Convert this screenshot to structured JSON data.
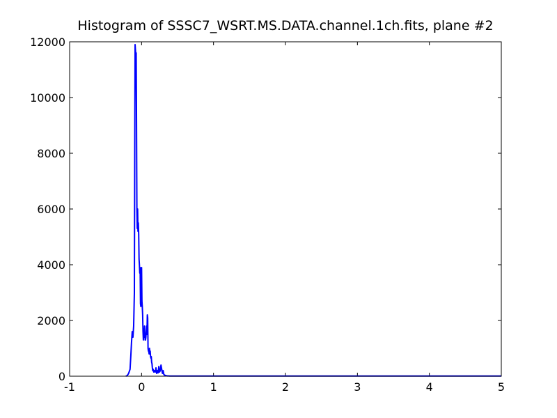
{
  "chart_data": {
    "type": "line",
    "title": "Histogram of SSSC7_WSRT.MS.DATA.channel.1ch.fits, plane #2",
    "xlabel": "",
    "ylabel": "",
    "xlim": [
      -1,
      5
    ],
    "ylim": [
      0,
      12000
    ],
    "xticks": [
      -1,
      0,
      1,
      2,
      3,
      4,
      5
    ],
    "yticks": [
      0,
      2000,
      4000,
      6000,
      8000,
      10000,
      12000
    ],
    "grid": false,
    "series": [
      {
        "color": "#0000ff",
        "x": [
          -0.22,
          -0.2,
          -0.18,
          -0.16,
          -0.15,
          -0.14,
          -0.13,
          -0.12,
          -0.11,
          -0.1,
          -0.095,
          -0.09,
          -0.085,
          -0.08,
          -0.075,
          -0.07,
          -0.065,
          -0.06,
          -0.055,
          -0.05,
          -0.045,
          -0.04,
          -0.035,
          -0.03,
          -0.025,
          -0.02,
          -0.015,
          -0.01,
          -0.005,
          0.0,
          0.005,
          0.01,
          0.015,
          0.02,
          0.025,
          0.03,
          0.035,
          0.04,
          0.045,
          0.05,
          0.055,
          0.06,
          0.065,
          0.07,
          0.075,
          0.08,
          0.085,
          0.09,
          0.095,
          0.1,
          0.105,
          0.11,
          0.115,
          0.12,
          0.125,
          0.13,
          0.135,
          0.14,
          0.145,
          0.15,
          0.155,
          0.16,
          0.17,
          0.18,
          0.19,
          0.2,
          0.21,
          0.22,
          0.23,
          0.24,
          0.25,
          0.26,
          0.27,
          0.28,
          0.29,
          0.3,
          0.31,
          0.32,
          0.33,
          0.34,
          0.35,
          0.36,
          0.37,
          0.38,
          0.39,
          0.4,
          0.41,
          0.42,
          0.44,
          0.5,
          0.6,
          0.8,
          1.0,
          1.2,
          1.5,
          2.0,
          3.0,
          4.0,
          5.0
        ],
        "y": [
          0,
          20,
          100,
          250,
          700,
          1200,
          1600,
          1400,
          1800,
          3000,
          8000,
          11900,
          11700,
          11500,
          11600,
          9000,
          6000,
          5300,
          6000,
          5200,
          5500,
          5100,
          4200,
          4000,
          3700,
          3900,
          2600,
          2500,
          3600,
          3900,
          2700,
          2500,
          2200,
          1600,
          1300,
          1700,
          1400,
          1800,
          1500,
          1300,
          1300,
          1400,
          1600,
          1800,
          1500,
          2200,
          2100,
          1000,
          900,
          900,
          800,
          1000,
          800,
          900,
          700,
          650,
          700,
          500,
          450,
          300,
          200,
          250,
          150,
          200,
          150,
          300,
          100,
          200,
          120,
          350,
          150,
          200,
          400,
          250,
          100,
          200,
          60,
          40,
          30,
          20,
          15,
          10,
          10,
          8,
          5,
          5,
          5,
          5,
          5,
          5,
          5,
          5,
          5,
          5,
          5,
          5,
          5,
          5,
          5
        ]
      }
    ]
  }
}
